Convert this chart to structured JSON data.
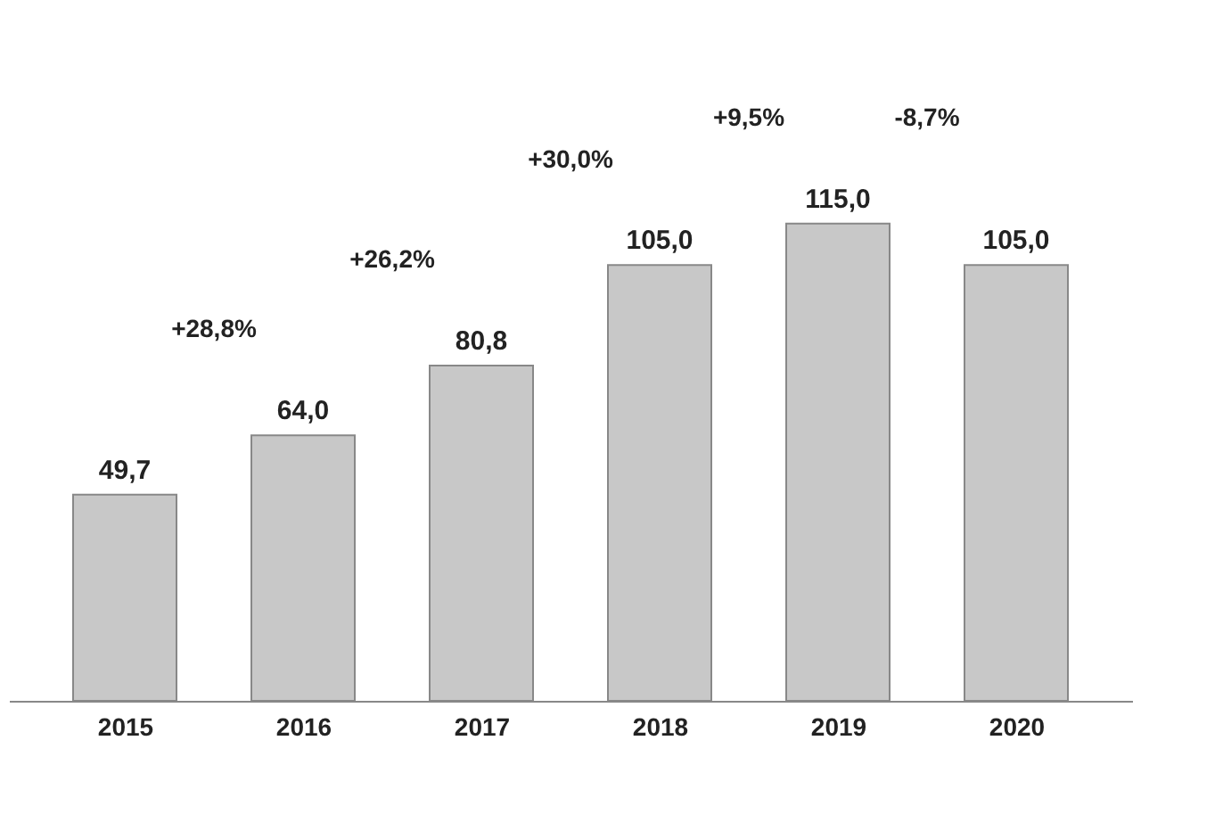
{
  "chart_data": {
    "type": "bar",
    "categories": [
      "2015",
      "2016",
      "2017",
      "2018",
      "2019",
      "2020"
    ],
    "values": [
      49.7,
      64.0,
      80.8,
      105.0,
      115.0,
      105.0
    ],
    "value_labels": [
      "49,7",
      "64,0",
      "80,8",
      "105,0",
      "115,0",
      "105,0"
    ],
    "color": "#c8c8c8",
    "annotations": [
      "+28,8%",
      "+26,2%",
      "+30,0%",
      "+9,5%",
      "-8,7%"
    ],
    "grid": false
  }
}
